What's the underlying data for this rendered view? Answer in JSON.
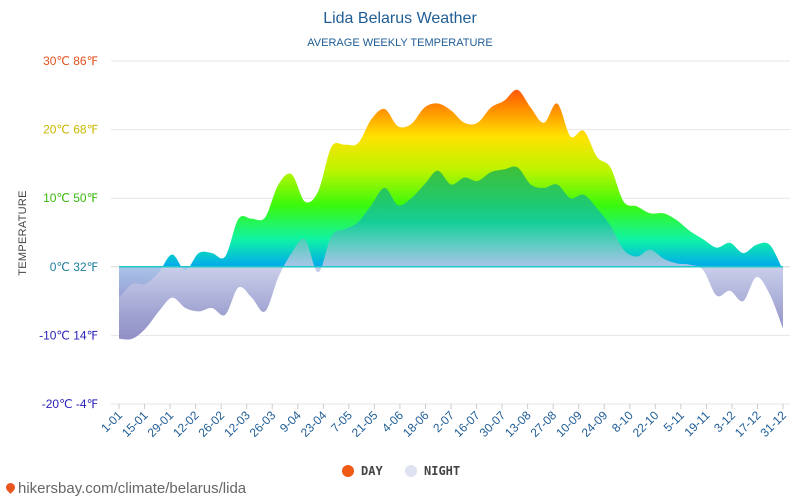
{
  "chart_data": {
    "type": "area",
    "title": "Lida Belarus Weather",
    "subtitle": "AVERAGE WEEKLY TEMPERATURE",
    "ylabel": "TEMPERATURE",
    "ylim": [
      -20,
      30
    ],
    "yticks": [
      {
        "value": 30,
        "label": "30℃ 86℉"
      },
      {
        "value": 20,
        "label": "20℃ 68℉"
      },
      {
        "value": 10,
        "label": "10℃ 50℉"
      },
      {
        "value": 0,
        "label": "0℃ 32℉"
      },
      {
        "value": -10,
        "label": "-10℃ 14℉"
      },
      {
        "value": -20,
        "label": "-20℃ -4℉"
      }
    ],
    "x_labels": [
      "1-01",
      "15-01",
      "29-01",
      "12-02",
      "26-02",
      "12-03",
      "26-03",
      "9-04",
      "23-04",
      "7-05",
      "21-05",
      "4-06",
      "18-06",
      "2-07",
      "16-07",
      "30-07",
      "13-08",
      "27-08",
      "10-09",
      "24-09",
      "8-10",
      "22-10",
      "5-11",
      "19-11",
      "3-12",
      "17-12",
      "31-12"
    ],
    "grid": true,
    "legend_position": "bottom-center",
    "series": [
      {
        "name": "DAY",
        "color": "#ef5a14",
        "values": [
          -4.5,
          -2.5,
          -2.5,
          -0.8,
          1.8,
          -0.5,
          2.0,
          2.0,
          1.5,
          7.0,
          7.0,
          7.2,
          12.0,
          13.5,
          9.5,
          11.0,
          17.5,
          17.8,
          18.0,
          21.5,
          23.0,
          20.5,
          20.8,
          23.2,
          23.8,
          22.8,
          21.0,
          21.0,
          23.2,
          24.2,
          25.8,
          23.2,
          21.0,
          23.8,
          19.0,
          19.8,
          16.0,
          14.5,
          9.5,
          8.8,
          7.8,
          7.8,
          6.8,
          5.2,
          4.0,
          2.8,
          3.5,
          2.0,
          3.2,
          3.2,
          -0.5
        ]
      },
      {
        "name": "NIGHT",
        "color": "#dfe3f1",
        "values": [
          -10.5,
          -10.5,
          -9.0,
          -6.5,
          -4.5,
          -6.0,
          -6.5,
          -6.0,
          -7.0,
          -3.0,
          -4.5,
          -6.5,
          -1.5,
          2.0,
          4.0,
          -0.8,
          4.5,
          5.5,
          6.5,
          9.0,
          11.5,
          9.0,
          10.0,
          12.0,
          14.0,
          12.0,
          13.0,
          12.5,
          13.8,
          14.2,
          14.5,
          12.0,
          11.5,
          12.0,
          10.0,
          10.5,
          8.5,
          6.0,
          2.5,
          1.5,
          2.5,
          1.2,
          0.5,
          0.3,
          -0.5,
          -4.2,
          -3.5,
          -5.0,
          -1.5,
          -4.0,
          -9.0
        ]
      }
    ]
  }
}
